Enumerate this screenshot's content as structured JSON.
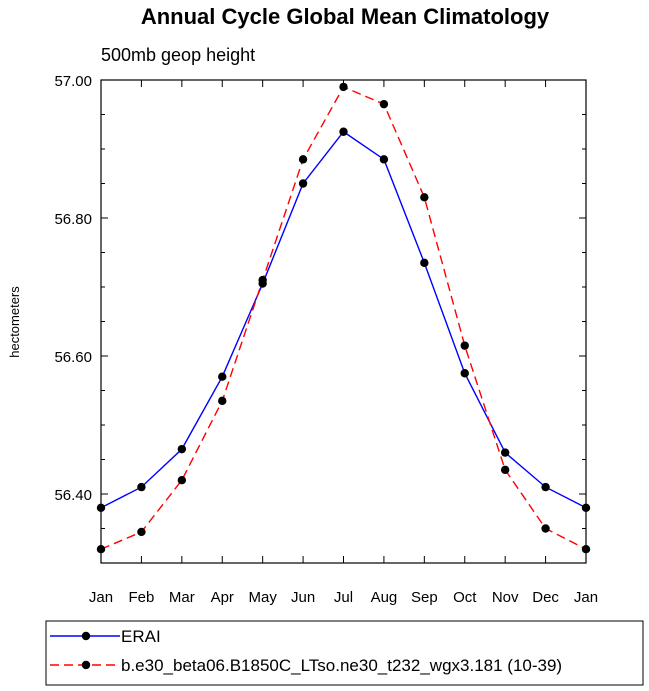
{
  "chart_data": {
    "type": "line",
    "title": "Annual Cycle Global Mean Climatology",
    "subtitle": "500mb geop height",
    "xlabel": "",
    "ylabel": "hectometers",
    "categories": [
      "Jan",
      "Feb",
      "Mar",
      "Apr",
      "May",
      "Jun",
      "Jul",
      "Aug",
      "Sep",
      "Oct",
      "Nov",
      "Dec",
      "Jan"
    ],
    "ylim": [
      56.3,
      57.0
    ],
    "yticks": [
      56.4,
      56.6,
      56.8,
      57.0
    ],
    "ytick_labels": [
      "56.40",
      "56.60",
      "56.80",
      "57.00"
    ],
    "grid": false,
    "legend_position": "bottom-left",
    "series": [
      {
        "name": "ERAI",
        "color": "#0000ff",
        "dash": "solid",
        "values": [
          56.38,
          56.41,
          56.465,
          56.57,
          56.705,
          56.85,
          56.925,
          56.885,
          56.735,
          56.575,
          56.46,
          56.41,
          56.38
        ]
      },
      {
        "name": "b.e30_beta06.B1850C_LTso.ne30_t232_wgx3.181 (10-39)",
        "color": "#ff0000",
        "dash": "dashed",
        "values": [
          56.32,
          56.345,
          56.42,
          56.535,
          56.71,
          56.885,
          56.99,
          56.965,
          56.83,
          56.615,
          56.435,
          56.35,
          56.32
        ]
      }
    ]
  }
}
